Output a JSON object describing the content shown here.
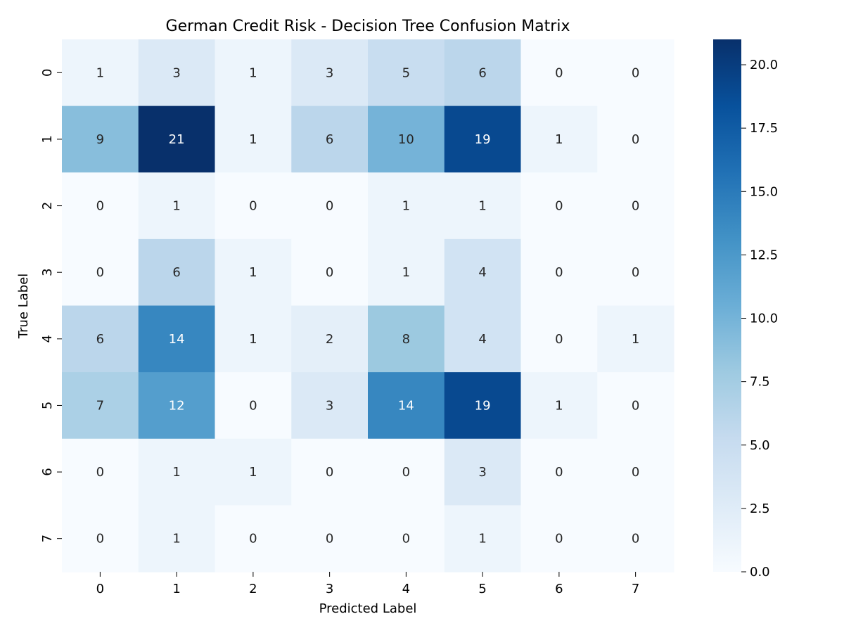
{
  "chart_data": {
    "type": "heatmap",
    "title": "German Credit Risk - Decision Tree Confusion Matrix",
    "xlabel": "Predicted Label",
    "ylabel": "True Label",
    "x_categories": [
      "0",
      "1",
      "2",
      "3",
      "4",
      "5",
      "6",
      "7"
    ],
    "y_categories": [
      "0",
      "1",
      "2",
      "3",
      "4",
      "5",
      "6",
      "7"
    ],
    "matrix": [
      [
        1,
        3,
        1,
        3,
        5,
        6,
        0,
        0
      ],
      [
        9,
        21,
        1,
        6,
        10,
        19,
        1,
        0
      ],
      [
        0,
        1,
        0,
        0,
        1,
        1,
        0,
        0
      ],
      [
        0,
        6,
        1,
        0,
        1,
        4,
        0,
        0
      ],
      [
        6,
        14,
        1,
        2,
        8,
        4,
        0,
        1
      ],
      [
        7,
        12,
        0,
        3,
        14,
        19,
        1,
        0
      ],
      [
        0,
        1,
        1,
        0,
        0,
        3,
        0,
        0
      ],
      [
        0,
        1,
        0,
        0,
        0,
        1,
        0,
        0
      ]
    ],
    "colormap": "Blues",
    "color_range": [
      0,
      21
    ],
    "colorbar_ticks": [
      "0.0",
      "2.5",
      "5.0",
      "7.5",
      "10.0",
      "12.5",
      "15.0",
      "17.5",
      "20.0"
    ],
    "colorbar_tick_values": [
      0,
      2.5,
      5,
      7.5,
      10,
      12.5,
      15,
      17.5,
      20
    ],
    "grid": false,
    "legend": "colorbar-right"
  }
}
